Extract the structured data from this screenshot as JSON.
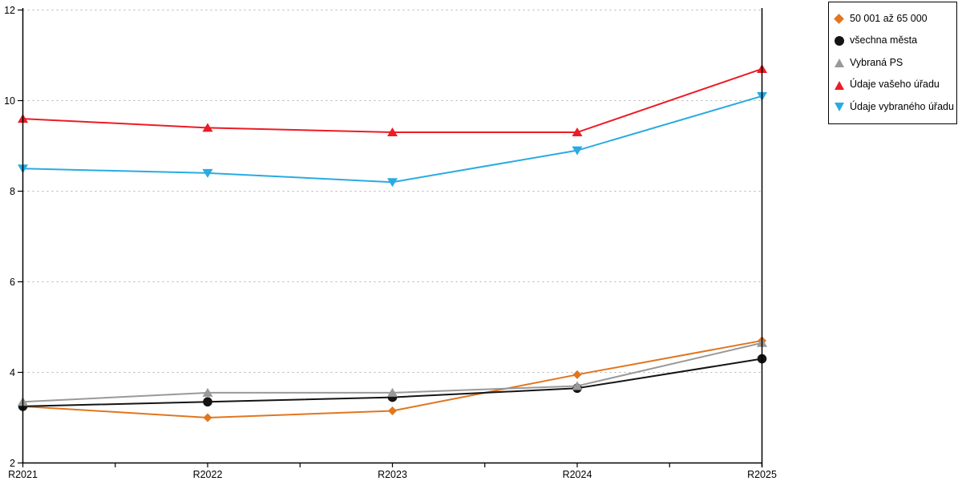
{
  "chart_data": {
    "type": "line",
    "title": "",
    "xlabel": "",
    "ylabel": "",
    "categories": [
      "R2021",
      "R2022",
      "R2023",
      "R2024",
      "R2025"
    ],
    "series": [
      {
        "name": "50 001 až 65 000",
        "marker": "diamond",
        "color": "#E0761F",
        "values": [
          3.25,
          3.0,
          3.15,
          3.95,
          4.7
        ]
      },
      {
        "name": "všechna města",
        "marker": "circle",
        "color": "#141414",
        "values": [
          3.25,
          3.35,
          3.45,
          3.65,
          4.3
        ]
      },
      {
        "name": "Vybraná PS",
        "marker": "triangle-up",
        "color": "#999999",
        "values": [
          3.35,
          3.55,
          3.55,
          3.7,
          4.65
        ]
      },
      {
        "name": "Údaje vašeho úřadu",
        "marker": "triangle-up",
        "color": "#EC1C24",
        "values": [
          9.6,
          9.4,
          9.3,
          9.3,
          10.7
        ]
      },
      {
        "name": "Údaje vybraného úřadu",
        "marker": "triangle-down",
        "color": "#29ABE2",
        "values": [
          8.5,
          8.4,
          8.2,
          8.9,
          10.1
        ]
      }
    ],
    "ylim": [
      2,
      12
    ],
    "yticks": [
      2,
      4,
      6,
      8,
      10,
      12
    ],
    "ytick_labels": [
      "2",
      "4",
      "6",
      "8",
      "10",
      "12"
    ],
    "grid": "horizontal-dotted",
    "legend_position": "outside-top-right"
  },
  "colors": {
    "background": "#FFFFFF",
    "axis": "#000000",
    "gridline": "#B3B3B3",
    "tick_label": "#000000",
    "legend_border": "#000000"
  }
}
